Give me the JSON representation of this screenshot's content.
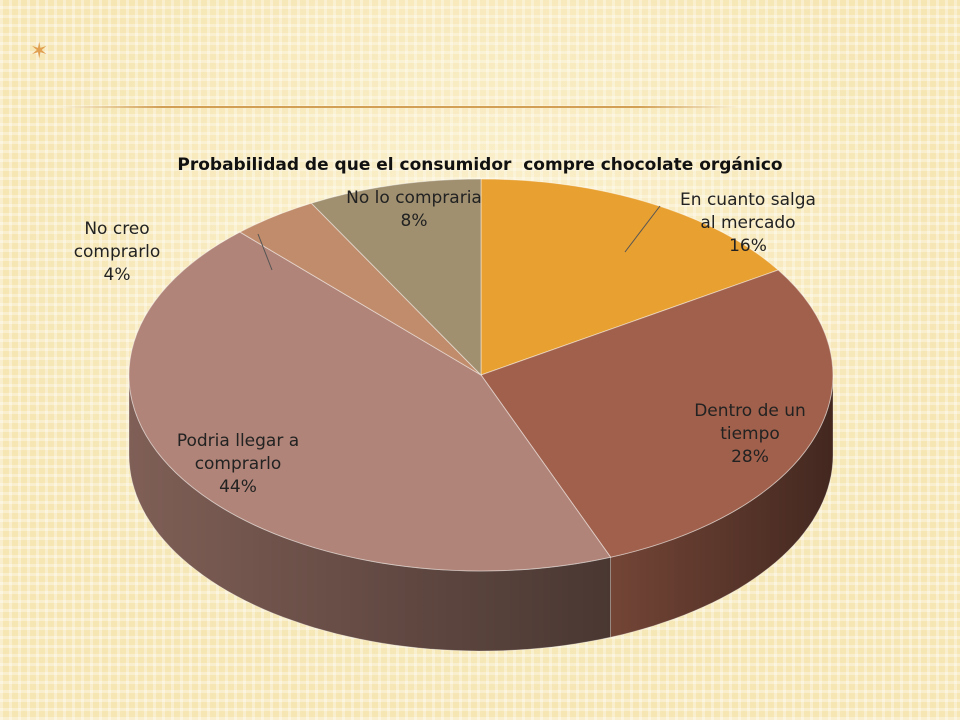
{
  "slide": {
    "bullet_symbol": "✶"
  },
  "chart_data": {
    "type": "pie",
    "style": "3d",
    "title": "Probabilidad de que el consumidor  compre chocolate orgánico",
    "slices": [
      {
        "label_lines": [
          "En cuanto salga",
          "al mercado"
        ],
        "value": 16,
        "value_text": "16%",
        "color": "#e8a030"
      },
      {
        "label_lines": [
          "Dentro de un",
          "tiempo"
        ],
        "value": 28,
        "value_text": "28%",
        "color": "#a0604b"
      },
      {
        "label_lines": [
          "Podria llegar a",
          "comprarlo"
        ],
        "value": 44,
        "value_text": "44%",
        "color": "#b08478"
      },
      {
        "label_lines": [
          "No creo",
          "comprarlo"
        ],
        "value": 4,
        "value_text": "4%",
        "color": "#c08c6c"
      },
      {
        "label_lines": [
          "No lo compraria"
        ],
        "value": 8,
        "value_text": "8%",
        "color": "#a09070"
      }
    ],
    "start_angle_deg": 0,
    "direction": "clockwise",
    "legend": "none",
    "data_labels": "category-and-percent"
  }
}
